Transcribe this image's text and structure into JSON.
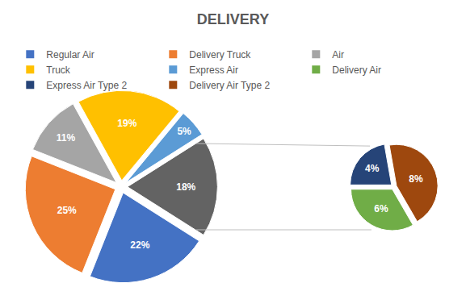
{
  "chart_data": [
    {
      "type": "pie",
      "title": "DELIVERY",
      "categories": [
        "Regular Air",
        "Delivery Truck",
        "Air",
        "Truck",
        "Express Air",
        null
      ],
      "values": [
        22,
        25,
        11,
        19,
        5,
        18
      ],
      "value_labels": [
        "22%",
        "25%",
        "11%",
        "19%",
        "5%",
        "18%"
      ],
      "colors": [
        "#4472c4",
        "#ed7d31",
        "#a5a5a5",
        "#ffc000",
        "#5b9bd5",
        "#636363"
      ],
      "data_labels": true,
      "legend": "top"
    },
    {
      "type": "pie",
      "categories": [
        "Delivery Air",
        "Express Air Type 2",
        "Delivery Air Type 2"
      ],
      "values": [
        6,
        4,
        8
      ],
      "value_labels": [
        "6%",
        "4%",
        "8%"
      ],
      "colors": [
        "#70ad47",
        "#264478",
        "#9e480e"
      ],
      "data_labels": true
    }
  ]
}
